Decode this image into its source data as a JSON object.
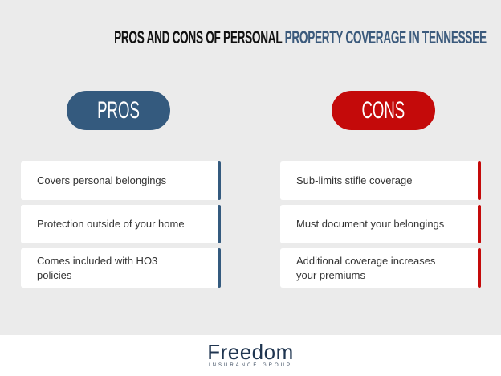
{
  "title": {
    "part1": "PROS AND CONS OF PERSONAL",
    "part2": "PROPERTY COVERAGE IN TENNESSEE"
  },
  "colors": {
    "pros": "#345a7e",
    "cons": "#c40a0a",
    "background": "#ebebeb"
  },
  "pros": {
    "label": "PROS",
    "items": [
      "Covers personal belongings",
      "Protection outside of your home",
      "Comes included with HO3 policies"
    ]
  },
  "cons": {
    "label": "CONS",
    "items": [
      "Sub-limits stifle coverage",
      "Must document your belongings",
      "Additional coverage increases your premiums"
    ]
  },
  "footer": {
    "logo_main": "Freedom",
    "logo_sub": "INSURANCE GROUP"
  }
}
